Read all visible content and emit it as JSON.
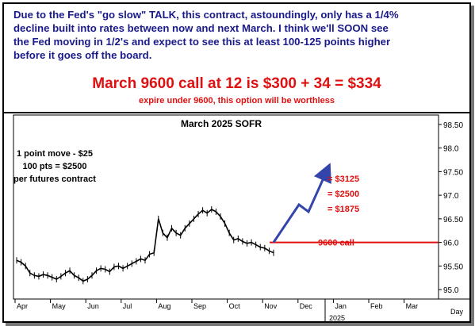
{
  "header": {
    "line1": "Due to the Fed's \"go slow\" TALK, this contract, astoundingly, only has a 1/4%",
    "line2": "decline built into rates between now and next March. I think we'll SOON see",
    "line3": "the Fed moving in 1/2's and expect to see this at least 100-125 points higher",
    "line4": "before it goes off the board.",
    "big_line": "March 9600 call at 12 is $300 + 34 = $334",
    "small_line": "expire under 9600, this option will be worthless",
    "text_color": "#1a1a8a",
    "accent_color": "#e01010"
  },
  "chart_data": {
    "type": "line",
    "title": "March 2025 SOFR",
    "ylim": [
      94.8,
      98.7
    ],
    "y_ticks": [
      "98.50",
      "98.0",
      "97.50",
      "97.0",
      "96.50",
      "96.0",
      "95.50",
      "95.0"
    ],
    "y_tick_values": [
      98.5,
      98.0,
      97.5,
      97.0,
      96.5,
      96.0,
      95.5,
      95.0
    ],
    "x_ticks": [
      "Apr",
      "May",
      "Jun",
      "Jul",
      "Aug",
      "Sep",
      "Oct",
      "Nov",
      "Dec",
      "Jan",
      "Feb",
      "Mar"
    ],
    "x_label_right": "Day",
    "x_year": "2025",
    "grid": false,
    "series": [
      {
        "values": [
          95.62,
          95.58,
          95.5,
          95.35,
          95.3,
          95.28,
          95.32,
          95.3,
          95.26,
          95.22,
          95.28,
          95.35,
          95.4,
          95.3,
          95.25,
          95.18,
          95.22,
          95.3,
          95.4,
          95.45,
          95.43,
          95.38,
          95.48,
          95.5,
          95.45,
          95.5,
          95.55,
          95.6,
          95.65,
          95.62,
          95.75,
          95.78,
          96.5,
          96.2,
          96.1,
          96.3,
          96.2,
          96.15,
          96.3,
          96.4,
          96.5,
          96.6,
          96.68,
          96.62,
          96.7,
          96.65,
          96.55,
          96.4,
          96.2,
          96.05,
          96.08,
          96.02,
          95.98,
          96.0,
          95.95,
          95.9,
          95.88,
          95.82,
          95.78
        ]
      },
      {
        "name": "projection",
        "values": [
          96.0,
          96.8,
          96.65,
          97.55
        ]
      }
    ],
    "annotations": {
      "info1": "1 point move - $25",
      "info2": "100 pts = $2500",
      "info3": "per futures contract",
      "target1": "= $3125",
      "target2": "= $2500",
      "target3": "= $1875",
      "strike_label": "9600 call",
      "strike_value": 96.0
    },
    "colors": {
      "price": "#000000",
      "projection": "#3344aa",
      "strike": "#e01010"
    }
  }
}
